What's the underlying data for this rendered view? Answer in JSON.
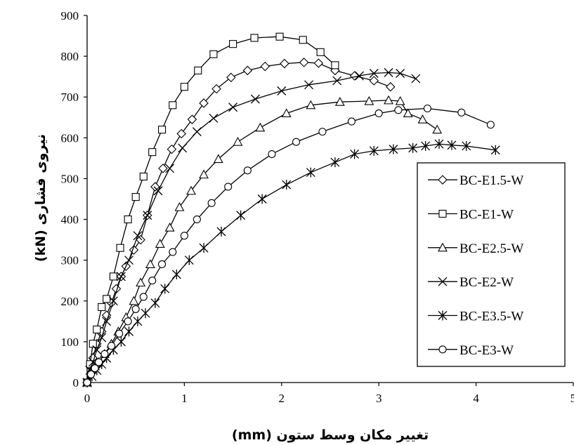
{
  "chart_data": {
    "type": "line",
    "title": "",
    "xlabel": "تغییر مکان وسط ستون (mm)",
    "ylabel": "نیروی فشاری (kN)",
    "xlim": [
      0,
      5
    ],
    "ylim": [
      0,
      900
    ],
    "x_ticks": [
      "0",
      "1",
      "2",
      "3",
      "4",
      "5"
    ],
    "y_ticks": [
      "0",
      "100",
      "200",
      "300",
      "400",
      "500",
      "600",
      "700",
      "800",
      "900"
    ],
    "grid": false,
    "legend_position": "right",
    "series": [
      {
        "name": "BC-E1.5-W",
        "marker": "diamond",
        "x": [
          0.0,
          0.03,
          0.06,
          0.1,
          0.15,
          0.2,
          0.25,
          0.3,
          0.35,
          0.4,
          0.48,
          0.55,
          0.62,
          0.7,
          0.78,
          0.87,
          0.97,
          1.08,
          1.2,
          1.33,
          1.48,
          1.65,
          1.83,
          2.03,
          2.23,
          2.38,
          2.55,
          2.75,
          2.95,
          3.12
        ],
        "y": [
          0,
          40,
          60,
          95,
          125,
          165,
          195,
          230,
          260,
          285,
          325,
          350,
          410,
          480,
          525,
          572,
          610,
          645,
          685,
          720,
          748,
          765,
          775,
          782,
          785,
          783,
          765,
          752,
          740,
          725
        ]
      },
      {
        "name": "BC-E1-W",
        "marker": "square",
        "x": [
          0.0,
          0.03,
          0.06,
          0.1,
          0.15,
          0.2,
          0.27,
          0.34,
          0.42,
          0.5,
          0.58,
          0.67,
          0.77,
          0.88,
          1.0,
          1.14,
          1.3,
          1.5,
          1.72,
          1.98,
          2.22,
          2.4,
          2.55
        ],
        "y": [
          0,
          45,
          95,
          130,
          185,
          205,
          260,
          330,
          400,
          455,
          505,
          565,
          620,
          680,
          725,
          765,
          805,
          830,
          845,
          848,
          840,
          810,
          778
        ]
      },
      {
        "name": "BC-E2.5-W",
        "marker": "triangle",
        "x": [
          0.0,
          0.04,
          0.08,
          0.12,
          0.18,
          0.25,
          0.32,
          0.4,
          0.48,
          0.55,
          0.65,
          0.75,
          0.85,
          0.95,
          1.07,
          1.2,
          1.35,
          1.55,
          1.78,
          2.05,
          2.3,
          2.6,
          2.9,
          3.1,
          3.22,
          3.3,
          3.45,
          3.6
        ],
        "y": [
          0,
          30,
          40,
          50,
          70,
          95,
          125,
          160,
          200,
          245,
          290,
          340,
          380,
          430,
          470,
          510,
          548,
          590,
          625,
          660,
          680,
          688,
          690,
          692,
          690,
          660,
          645,
          620
        ]
      },
      {
        "name": "BC-E2-W",
        "marker": "x",
        "x": [
          0.0,
          0.03,
          0.06,
          0.1,
          0.15,
          0.2,
          0.27,
          0.35,
          0.43,
          0.52,
          0.62,
          0.73,
          0.85,
          0.98,
          1.13,
          1.3,
          1.5,
          1.73,
          2.0,
          2.28,
          2.57,
          2.8,
          2.95,
          3.1,
          3.22,
          3.38
        ],
        "y": [
          0,
          30,
          50,
          80,
          110,
          150,
          200,
          260,
          300,
          360,
          410,
          470,
          525,
          575,
          615,
          648,
          675,
          695,
          715,
          730,
          740,
          752,
          758,
          760,
          758,
          745
        ]
      },
      {
        "name": "BC-E3.5-W",
        "marker": "asterisk",
        "x": [
          0.0,
          0.05,
          0.1,
          0.15,
          0.2,
          0.27,
          0.35,
          0.43,
          0.52,
          0.6,
          0.7,
          0.8,
          0.92,
          1.05,
          1.2,
          1.38,
          1.58,
          1.8,
          2.05,
          2.3,
          2.55,
          2.75,
          2.95,
          3.15,
          3.35,
          3.48,
          3.62,
          3.75,
          3.9,
          4.2
        ],
        "y": [
          0,
          15,
          30,
          45,
          60,
          80,
          100,
          125,
          150,
          170,
          195,
          230,
          265,
          300,
          330,
          370,
          410,
          450,
          485,
          515,
          540,
          560,
          568,
          572,
          575,
          580,
          585,
          582,
          580,
          570
        ]
      },
      {
        "name": "BC-E3-W",
        "marker": "circle",
        "x": [
          0.0,
          0.04,
          0.08,
          0.12,
          0.18,
          0.25,
          0.33,
          0.42,
          0.5,
          0.58,
          0.67,
          0.77,
          0.88,
          1.0,
          1.13,
          1.28,
          1.45,
          1.65,
          1.9,
          2.15,
          2.42,
          2.72,
          3.0,
          3.2,
          3.5,
          3.85,
          4.15
        ],
        "y": [
          0,
          20,
          35,
          50,
          70,
          90,
          120,
          150,
          180,
          210,
          250,
          290,
          320,
          360,
          400,
          440,
          480,
          520,
          560,
          590,
          615,
          640,
          660,
          668,
          672,
          662,
          632
        ]
      }
    ]
  }
}
